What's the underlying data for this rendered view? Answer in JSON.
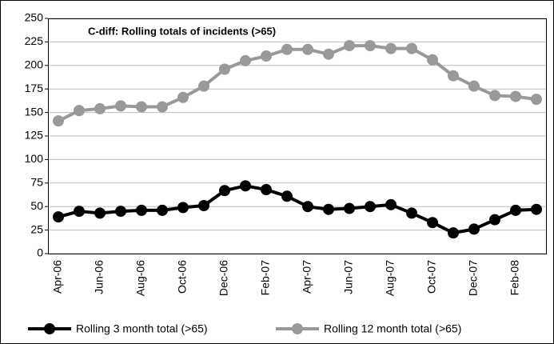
{
  "chart_data": {
    "type": "line",
    "title": "C-diff: Rolling totals of incidents (>65)",
    "categories": [
      "Apr-06",
      null,
      "Jun-06",
      null,
      "Aug-06",
      null,
      "Oct-06",
      null,
      "Dec-06",
      null,
      "Feb-07",
      null,
      "Apr-07",
      null,
      "Jun-07",
      null,
      "Aug-07",
      null,
      "Oct-07",
      null,
      "Dec-07",
      null,
      "Feb-08",
      null
    ],
    "series": [
      {
        "name": "Rolling 3 month total (>65)",
        "color": "#000000",
        "values": [
          39,
          45,
          43,
          45,
          46,
          46,
          49,
          51,
          67,
          72,
          68,
          61,
          50,
          47,
          48,
          50,
          52,
          43,
          33,
          22,
          26,
          36,
          46,
          47
        ]
      },
      {
        "name": "Rolling 12 month total (>65)",
        "color": "#999999",
        "values": [
          141,
          152,
          154,
          157,
          156,
          156,
          166,
          178,
          196,
          205,
          210,
          217,
          217,
          212,
          221,
          221,
          218,
          218,
          206,
          189,
          178,
          168,
          167,
          164
        ]
      }
    ],
    "ylim": [
      0,
      250
    ],
    "yticks": [
      0,
      25,
      50,
      75,
      100,
      125,
      150,
      175,
      200,
      225,
      250
    ],
    "grid": true,
    "legend": "bottom"
  }
}
